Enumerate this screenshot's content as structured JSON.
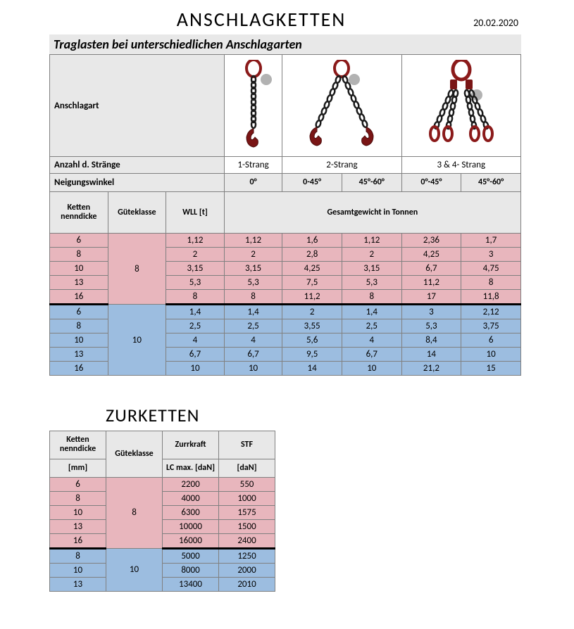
{
  "title": "ANSCHLAGKETTEN",
  "date": "20.02.2020",
  "band": "Traglasten bei unterschiedlichen Anschlagarten",
  "anschlagart_label": "Anschlagart",
  "strands_label": "Anzahl d. Stränge",
  "strands": [
    "1-Strang",
    "2-Strang",
    "3 & 4- Strang"
  ],
  "angle_label": "Neigungswinkel",
  "angles": [
    "0°",
    "0-45°",
    "45°-60°",
    "0°-45°",
    "45°-60°"
  ],
  "col_heads": {
    "dicke": "Ketten nenndicke",
    "klasse": "Güteklasse",
    "wll": "WLL [t]",
    "gesamt": "Gesamtgewicht in Tonnen"
  },
  "gk8": "8",
  "gk10": "10",
  "rows8": [
    {
      "d": "6",
      "v": [
        "1,12",
        "1,12",
        "1,6",
        "1,12",
        "2,36",
        "1,7"
      ]
    },
    {
      "d": "8",
      "v": [
        "2",
        "2",
        "2,8",
        "2",
        "4,25",
        "3"
      ]
    },
    {
      "d": "10",
      "v": [
        "3,15",
        "3,15",
        "4,25",
        "3,15",
        "6,7",
        "4,75"
      ]
    },
    {
      "d": "13",
      "v": [
        "5,3",
        "5,3",
        "7,5",
        "5,3",
        "11,2",
        "8"
      ]
    },
    {
      "d": "16",
      "v": [
        "8",
        "8",
        "11,2",
        "8",
        "17",
        "11,8"
      ]
    }
  ],
  "rows10": [
    {
      "d": "6",
      "v": [
        "1,4",
        "1,4",
        "2",
        "1,4",
        "3",
        "2,12"
      ]
    },
    {
      "d": "8",
      "v": [
        "2,5",
        "2,5",
        "3,55",
        "2,5",
        "5,3",
        "3,75"
      ]
    },
    {
      "d": "10",
      "v": [
        "4",
        "4",
        "5,6",
        "4",
        "8,4",
        "6"
      ]
    },
    {
      "d": "13",
      "v": [
        "6,7",
        "6,7",
        "9,5",
        "6,7",
        "14",
        "10"
      ]
    },
    {
      "d": "16",
      "v": [
        "10",
        "10",
        "14",
        "10",
        "21,2",
        "15"
      ]
    }
  ],
  "title2": "ZURKETTEN",
  "z_heads": {
    "dicke": "Ketten nenndicke",
    "mm": "[mm]",
    "klasse": "Güteklasse",
    "zurr": "Zurrkraft",
    "lc": "LC max. [daN]",
    "stf": "STF",
    "dan": "[daN]"
  },
  "z8": [
    {
      "d": "6",
      "lc": "2200",
      "stf": "550"
    },
    {
      "d": "8",
      "lc": "4000",
      "stf": "1000"
    },
    {
      "d": "10",
      "lc": "6300",
      "stf": "1575"
    },
    {
      "d": "13",
      "lc": "10000",
      "stf": "1500"
    },
    {
      "d": "16",
      "lc": "16000",
      "stf": "2400"
    }
  ],
  "z10": [
    {
      "d": "8",
      "lc": "5000",
      "stf": "1250"
    },
    {
      "d": "10",
      "lc": "8000",
      "stf": "2000"
    },
    {
      "d": "13",
      "lc": "13400",
      "stf": "2010"
    }
  ],
  "colors": {
    "ring": "#8b1a1a",
    "hook": "#7a1515",
    "chain": "#1a1a1a",
    "pink": "#e8b6bd",
    "blue": "#9cbde0",
    "grey": "#e8e8e8",
    "border": "#808080"
  }
}
